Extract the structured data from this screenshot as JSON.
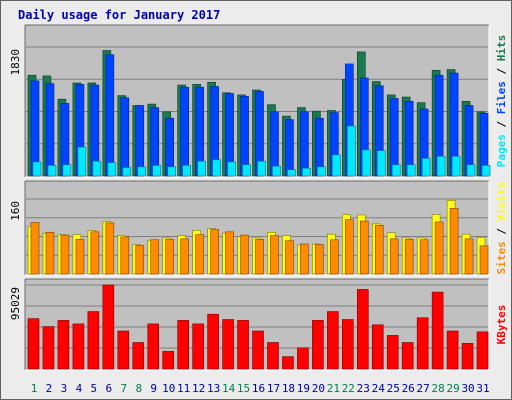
{
  "chart_data": [
    {
      "type": "bar",
      "title": "Daily usage for January 2017",
      "categories": [
        "1",
        "2",
        "3",
        "4",
        "5",
        "6",
        "7",
        "8",
        "9",
        "10",
        "11",
        "12",
        "13",
        "14",
        "15",
        "16",
        "17",
        "18",
        "19",
        "20",
        "21",
        "22",
        "23",
        "24",
        "25",
        "26",
        "27",
        "28",
        "29",
        "30",
        "31"
      ],
      "weekend_days": [
        "1",
        "7",
        "8",
        "14",
        "15",
        "21",
        "22",
        "28",
        "29"
      ],
      "ytick": "1830",
      "ylim": [
        0,
        1830
      ],
      "legend": [
        "Pages",
        "Files",
        "Hits"
      ],
      "series": [
        {
          "name": "Hits",
          "values": [
            1430,
            1420,
            1090,
            1320,
            1320,
            1780,
            1140,
            1000,
            1020,
            910,
            1290,
            1300,
            1330,
            1180,
            1150,
            1220,
            1012,
            850,
            970,
            920,
            930,
            1370,
            1760,
            1340,
            1150,
            1120,
            1040,
            1500,
            1510,
            1060,
            910
          ]
        },
        {
          "name": "Files",
          "values": [
            1350,
            1310,
            1030,
            1300,
            1290,
            1720,
            1110,
            1000,
            970,
            820,
            1260,
            1260,
            1270,
            1170,
            1130,
            1200,
            910,
            800,
            910,
            820,
            900,
            1590,
            1390,
            1280,
            1100,
            1060,
            950,
            1430,
            1460,
            1000,
            890
          ]
        },
        {
          "name": "Pages",
          "values": [
            200,
            150,
            160,
            410,
            210,
            190,
            120,
            130,
            150,
            130,
            150,
            210,
            230,
            200,
            160,
            210,
            140,
            90,
            110,
            130,
            300,
            710,
            370,
            360,
            160,
            160,
            250,
            280,
            280,
            160,
            150
          ]
        }
      ]
    },
    {
      "type": "bar",
      "ytick": "160",
      "ylim": [
        0,
        160
      ],
      "legend": [
        "Sites",
        "Visits"
      ],
      "series": [
        {
          "name": "Visits",
          "values": [
            102,
            87,
            84,
            84,
            93,
            112,
            82,
            63,
            72,
            77,
            82,
            93,
            97,
            87,
            80,
            77,
            89,
            82,
            62,
            64,
            85,
            127,
            126,
            107,
            88,
            77,
            77,
            127,
            157,
            85,
            78
          ]
        },
        {
          "name": "Sites",
          "values": [
            110,
            89,
            83,
            74,
            90,
            109,
            79,
            61,
            73,
            74,
            75,
            84,
            95,
            90,
            83,
            74,
            82,
            71,
            64,
            63,
            73,
            116,
            113,
            104,
            75,
            74,
            73,
            111,
            140,
            75,
            60
          ]
        }
      ]
    },
    {
      "type": "bar",
      "ytick": "95029",
      "ylim": [
        0,
        95029
      ],
      "legend": [
        "KBytes"
      ],
      "series": [
        {
          "name": "KBytes",
          "values": [
            57000,
            48000,
            55000,
            51000,
            65000,
            95029,
            43000,
            30000,
            51000,
            20000,
            55000,
            51000,
            62000,
            56000,
            55000,
            43000,
            30000,
            14000,
            24000,
            55000,
            65000,
            56000,
            90000,
            50000,
            38000,
            30000,
            58000,
            87000,
            43000,
            29000,
            42000
          ]
        }
      ]
    }
  ]
}
